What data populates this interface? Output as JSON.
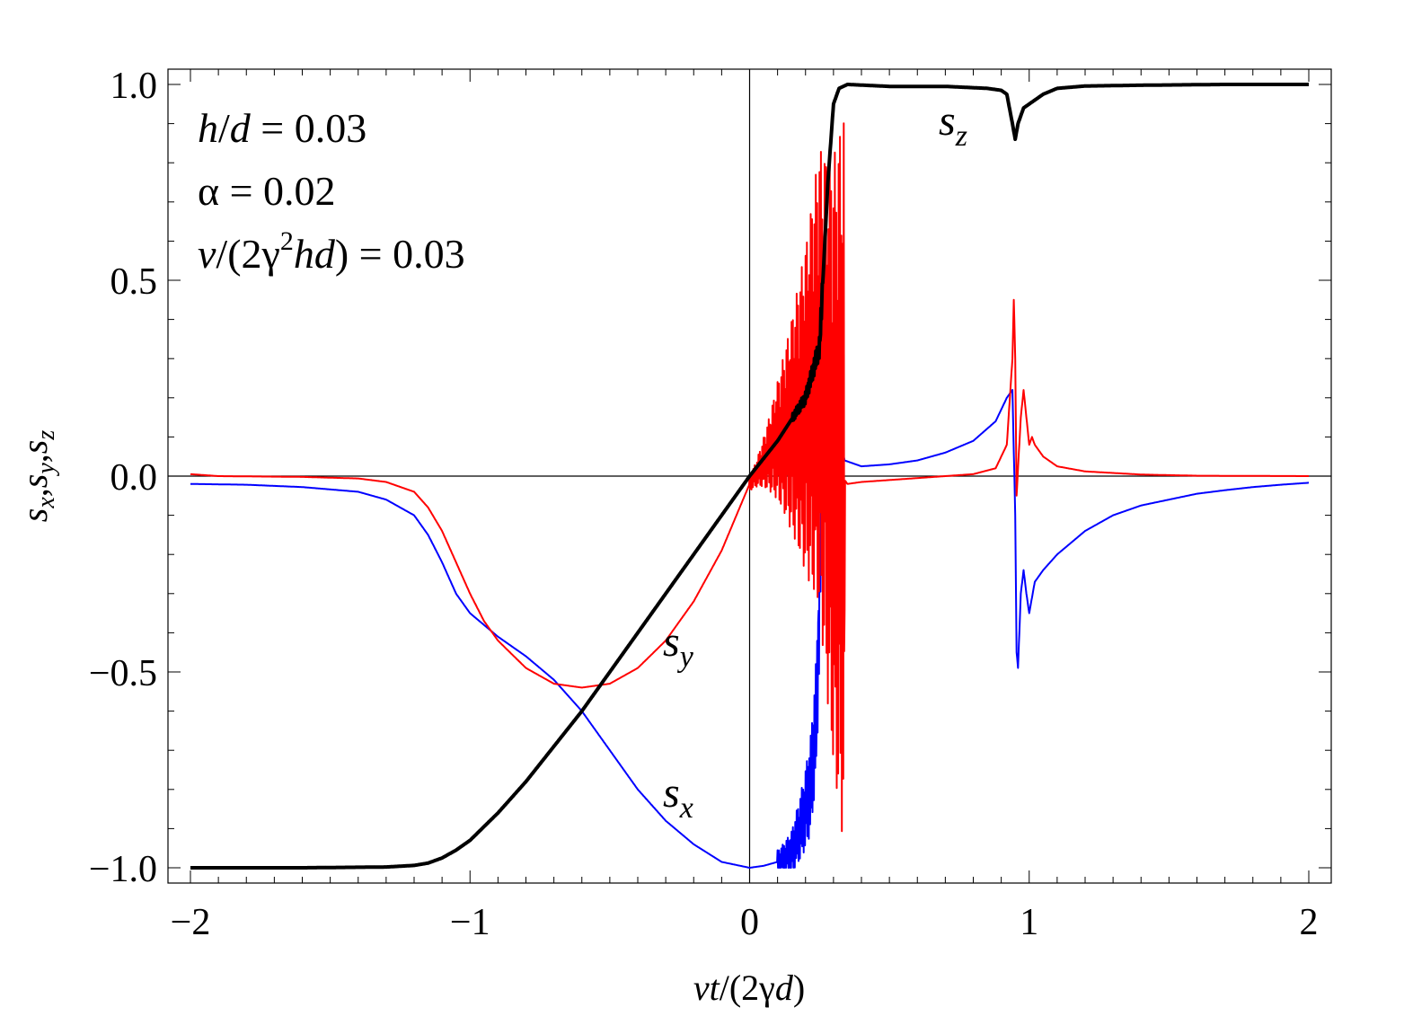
{
  "chart_data": {
    "type": "line",
    "xlim": [
      -2,
      2
    ],
    "ylim": [
      -1,
      1
    ],
    "x_ticks": [
      -2,
      -1,
      0,
      1,
      2
    ],
    "x_tick_labels": [
      "−2",
      "−1",
      "0",
      "1",
      "2"
    ],
    "y_ticks": [
      1.0,
      0.5,
      0.0,
      -0.5,
      -1.0
    ],
    "y_tick_labels": [
      "1.0",
      "0.5",
      "0.0",
      "−0.5",
      "−1.0"
    ],
    "xlabel": "vt/(2γd)",
    "ylabel": "s_x, s_y, s_z",
    "xlabel_parts": {
      "a": "vt",
      "b": "/(2γ",
      "c": "d",
      "d": ")"
    },
    "ylabel_parts": {
      "s": "s",
      "x": "x",
      "y": "y",
      "z": "z",
      "sep": ","
    },
    "parameters": {
      "line1_var": "h",
      "line1_sep": "/",
      "line1_var2": "d",
      "line1_val": " = 0.03",
      "line2": "α = 0.02",
      "line3_a": "v",
      "line3_b": "/(2γ",
      "line3_exp": "2",
      "line3_c": "hd",
      "line3_d": ") = 0.03"
    },
    "series": [
      {
        "name": "s_x",
        "label_base": "s",
        "label_sub": "x",
        "color": "#0000ff",
        "points": [
          [
            -2,
            -0.02
          ],
          [
            -1.8,
            -0.022
          ],
          [
            -1.6,
            -0.028
          ],
          [
            -1.4,
            -0.04
          ],
          [
            -1.3,
            -0.06
          ],
          [
            -1.2,
            -0.1
          ],
          [
            -1.15,
            -0.15
          ],
          [
            -1.1,
            -0.22
          ],
          [
            -1.05,
            -0.3
          ],
          [
            -1.0,
            -0.35
          ],
          [
            -0.95,
            -0.38
          ],
          [
            -0.9,
            -0.41
          ],
          [
            -0.8,
            -0.46
          ],
          [
            -0.7,
            -0.52
          ],
          [
            -0.6,
            -0.6
          ],
          [
            -0.5,
            -0.7
          ],
          [
            -0.4,
            -0.8
          ],
          [
            -0.3,
            -0.88
          ],
          [
            -0.2,
            -0.94
          ],
          [
            -0.1,
            -0.985
          ],
          [
            0.0,
            -1.0
          ],
          [
            0.05,
            -0.995
          ],
          [
            0.1,
            -0.985
          ],
          [
            0.15,
            -0.96
          ],
          [
            0.18,
            -0.9
          ],
          [
            0.2,
            -0.85
          ],
          [
            0.22,
            -0.78
          ],
          [
            0.24,
            -0.6
          ],
          [
            0.26,
            0.0
          ],
          [
            0.28,
            0.45
          ],
          [
            0.3,
            0.3
          ],
          [
            0.32,
            0.1
          ],
          [
            0.34,
            0.04
          ],
          [
            0.4,
            0.025
          ],
          [
            0.5,
            0.03
          ],
          [
            0.6,
            0.04
          ],
          [
            0.7,
            0.06
          ],
          [
            0.8,
            0.09
          ],
          [
            0.88,
            0.14
          ],
          [
            0.92,
            0.2
          ],
          [
            0.94,
            0.22
          ],
          [
            0.95,
            -0.1
          ],
          [
            0.955,
            -0.45
          ],
          [
            0.96,
            -0.49
          ],
          [
            0.97,
            -0.3
          ],
          [
            0.98,
            -0.24
          ],
          [
            0.99,
            -0.3
          ],
          [
            1.0,
            -0.35
          ],
          [
            1.02,
            -0.27
          ],
          [
            1.05,
            -0.24
          ],
          [
            1.1,
            -0.2
          ],
          [
            1.2,
            -0.14
          ],
          [
            1.3,
            -0.1
          ],
          [
            1.4,
            -0.075
          ],
          [
            1.5,
            -0.06
          ],
          [
            1.6,
            -0.045
          ],
          [
            1.7,
            -0.036
          ],
          [
            1.8,
            -0.028
          ],
          [
            1.9,
            -0.022
          ],
          [
            2.0,
            -0.017
          ]
        ],
        "oscillation": {
          "x_start": 0.1,
          "x_end": 0.27,
          "amp_start": 0.03,
          "amp_end": 0.2
        }
      },
      {
        "name": "s_y",
        "label_base": "s",
        "label_sub": "y",
        "color": "#ff0000",
        "points": [
          [
            -2,
            0.005
          ],
          [
            -1.9,
            0.0
          ],
          [
            -1.6,
            -0.002
          ],
          [
            -1.4,
            -0.006
          ],
          [
            -1.3,
            -0.015
          ],
          [
            -1.2,
            -0.04
          ],
          [
            -1.15,
            -0.08
          ],
          [
            -1.1,
            -0.14
          ],
          [
            -1.05,
            -0.22
          ],
          [
            -1.0,
            -0.3
          ],
          [
            -0.95,
            -0.37
          ],
          [
            -0.9,
            -0.42
          ],
          [
            -0.8,
            -0.49
          ],
          [
            -0.7,
            -0.53
          ],
          [
            -0.6,
            -0.54
          ],
          [
            -0.5,
            -0.53
          ],
          [
            -0.4,
            -0.49
          ],
          [
            -0.3,
            -0.42
          ],
          [
            -0.2,
            -0.32
          ],
          [
            -0.1,
            -0.19
          ],
          [
            0.0,
            -0.02
          ],
          [
            0.1,
            0.09
          ],
          [
            0.2,
            0.17
          ],
          [
            0.25,
            0.25
          ],
          [
            0.3,
            0.03
          ],
          [
            0.35,
            -0.02
          ],
          [
            0.4,
            -0.015
          ],
          [
            0.5,
            -0.01
          ],
          [
            0.6,
            -0.005
          ],
          [
            0.7,
            0.0
          ],
          [
            0.8,
            0.005
          ],
          [
            0.88,
            0.02
          ],
          [
            0.92,
            0.08
          ],
          [
            0.94,
            0.3
          ],
          [
            0.945,
            0.45
          ],
          [
            0.95,
            0.3
          ],
          [
            0.955,
            -0.05
          ],
          [
            0.96,
            0.02
          ],
          [
            0.97,
            0.15
          ],
          [
            0.98,
            0.22
          ],
          [
            0.99,
            0.15
          ],
          [
            1.0,
            0.08
          ],
          [
            1.01,
            0.1
          ],
          [
            1.02,
            0.08
          ],
          [
            1.05,
            0.05
          ],
          [
            1.1,
            0.025
          ],
          [
            1.2,
            0.012
          ],
          [
            1.4,
            0.004
          ],
          [
            1.6,
            0.001
          ],
          [
            2.0,
            0.0
          ]
        ],
        "oscillation": {
          "x_start": 0.0,
          "x_end": 0.34,
          "amp_start": 0.02,
          "amp_end": 0.95
        }
      },
      {
        "name": "s_z",
        "label_base": "s",
        "label_sub": "z",
        "color": "#000000",
        "points": [
          [
            -2,
            -1.0
          ],
          [
            -1.6,
            -1.0
          ],
          [
            -1.3,
            -0.998
          ],
          [
            -1.2,
            -0.994
          ],
          [
            -1.15,
            -0.988
          ],
          [
            -1.1,
            -0.975
          ],
          [
            -1.05,
            -0.955
          ],
          [
            -1.0,
            -0.93
          ],
          [
            -0.9,
            -0.86
          ],
          [
            -0.8,
            -0.78
          ],
          [
            -0.6,
            -0.6
          ],
          [
            -0.4,
            -0.4
          ],
          [
            -0.2,
            -0.2
          ],
          [
            0.0,
            0.0
          ],
          [
            0.1,
            0.09
          ],
          [
            0.2,
            0.2
          ],
          [
            0.25,
            0.33
          ],
          [
            0.28,
            0.75
          ],
          [
            0.3,
            0.95
          ],
          [
            0.32,
            0.99
          ],
          [
            0.35,
            1.0
          ],
          [
            0.5,
            0.995
          ],
          [
            0.7,
            0.995
          ],
          [
            0.85,
            0.99
          ],
          [
            0.9,
            0.985
          ],
          [
            0.92,
            0.975
          ],
          [
            0.94,
            0.9
          ],
          [
            0.95,
            0.86
          ],
          [
            0.96,
            0.9
          ],
          [
            0.98,
            0.94
          ],
          [
            1.0,
            0.95
          ],
          [
            1.02,
            0.96
          ],
          [
            1.05,
            0.975
          ],
          [
            1.1,
            0.99
          ],
          [
            1.2,
            0.996
          ],
          [
            1.4,
            0.998
          ],
          [
            1.7,
            1.0
          ],
          [
            2.0,
            1.0
          ]
        ],
        "oscillation": {
          "x_start": 0.15,
          "x_end": 0.26,
          "amp_start": 0.01,
          "amp_end": 0.03
        }
      }
    ]
  }
}
